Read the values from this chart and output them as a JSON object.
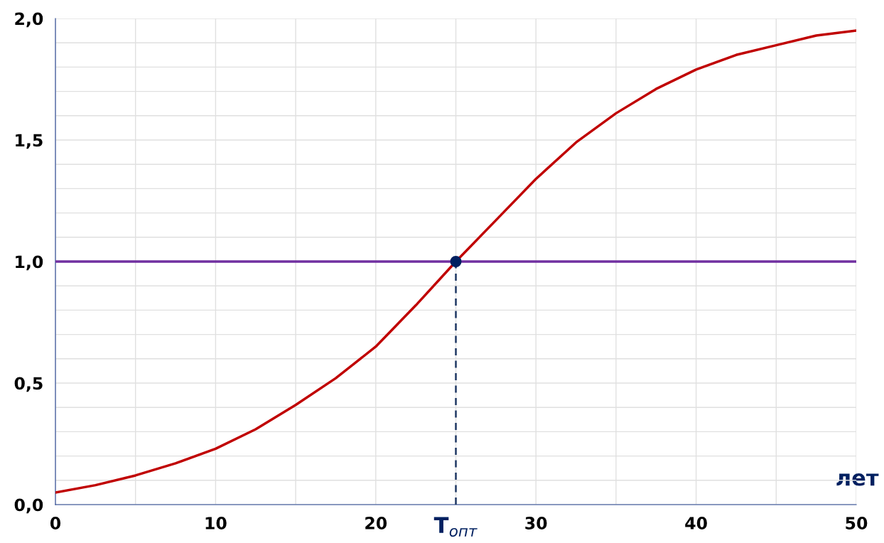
{
  "chart_data": {
    "type": "line",
    "xlabel": "лет",
    "x": [
      0,
      2.5,
      5,
      7.5,
      10,
      12.5,
      15,
      17.5,
      20,
      22.5,
      25,
      27.5,
      30,
      32.5,
      35,
      37.5,
      40,
      42.5,
      45,
      47.5,
      50
    ],
    "series": [
      {
        "color": "#c00000",
        "values": [
          0.05,
          0.08,
          0.12,
          0.17,
          0.23,
          0.31,
          0.41,
          0.52,
          0.65,
          0.82,
          1.0,
          1.17,
          1.34,
          1.49,
          1.61,
          1.71,
          1.79,
          1.85,
          1.89,
          1.93,
          1.95
        ]
      },
      {
        "type": "scatter",
        "values": [
          null,
          null,
          null,
          null,
          null,
          null,
          null,
          null,
          null,
          null,
          1.0,
          null,
          null,
          null,
          null,
          null,
          null,
          null,
          null,
          null,
          null
        ],
        "color": "#002060",
        "marker": "circle"
      }
    ],
    "ref_lines": [
      {
        "axis": "y",
        "value": 1.0,
        "color": "#7030a0"
      },
      {
        "axis": "x",
        "value": 25,
        "color": "#1f3864",
        "line_style": "dashed"
      }
    ],
    "xlim": [
      0,
      50
    ],
    "ylim": [
      0,
      2.0
    ],
    "xticks": [
      0,
      10,
      20,
      {
        "value": 25,
        "label": "T$_{опт}$"
      },
      30,
      40,
      50
    ],
    "yticks": [
      {
        "value": 0,
        "label": "0,0"
      },
      {
        "value": 0.5,
        "label": "0,5"
      },
      {
        "value": 1.0,
        "label": "1,0"
      },
      {
        "value": 1.5,
        "label": "1,5"
      },
      {
        "value": 2.0,
        "label": "2,0"
      }
    ],
    "grid": true,
    "marker": "none",
    "line_style": "solid"
  }
}
